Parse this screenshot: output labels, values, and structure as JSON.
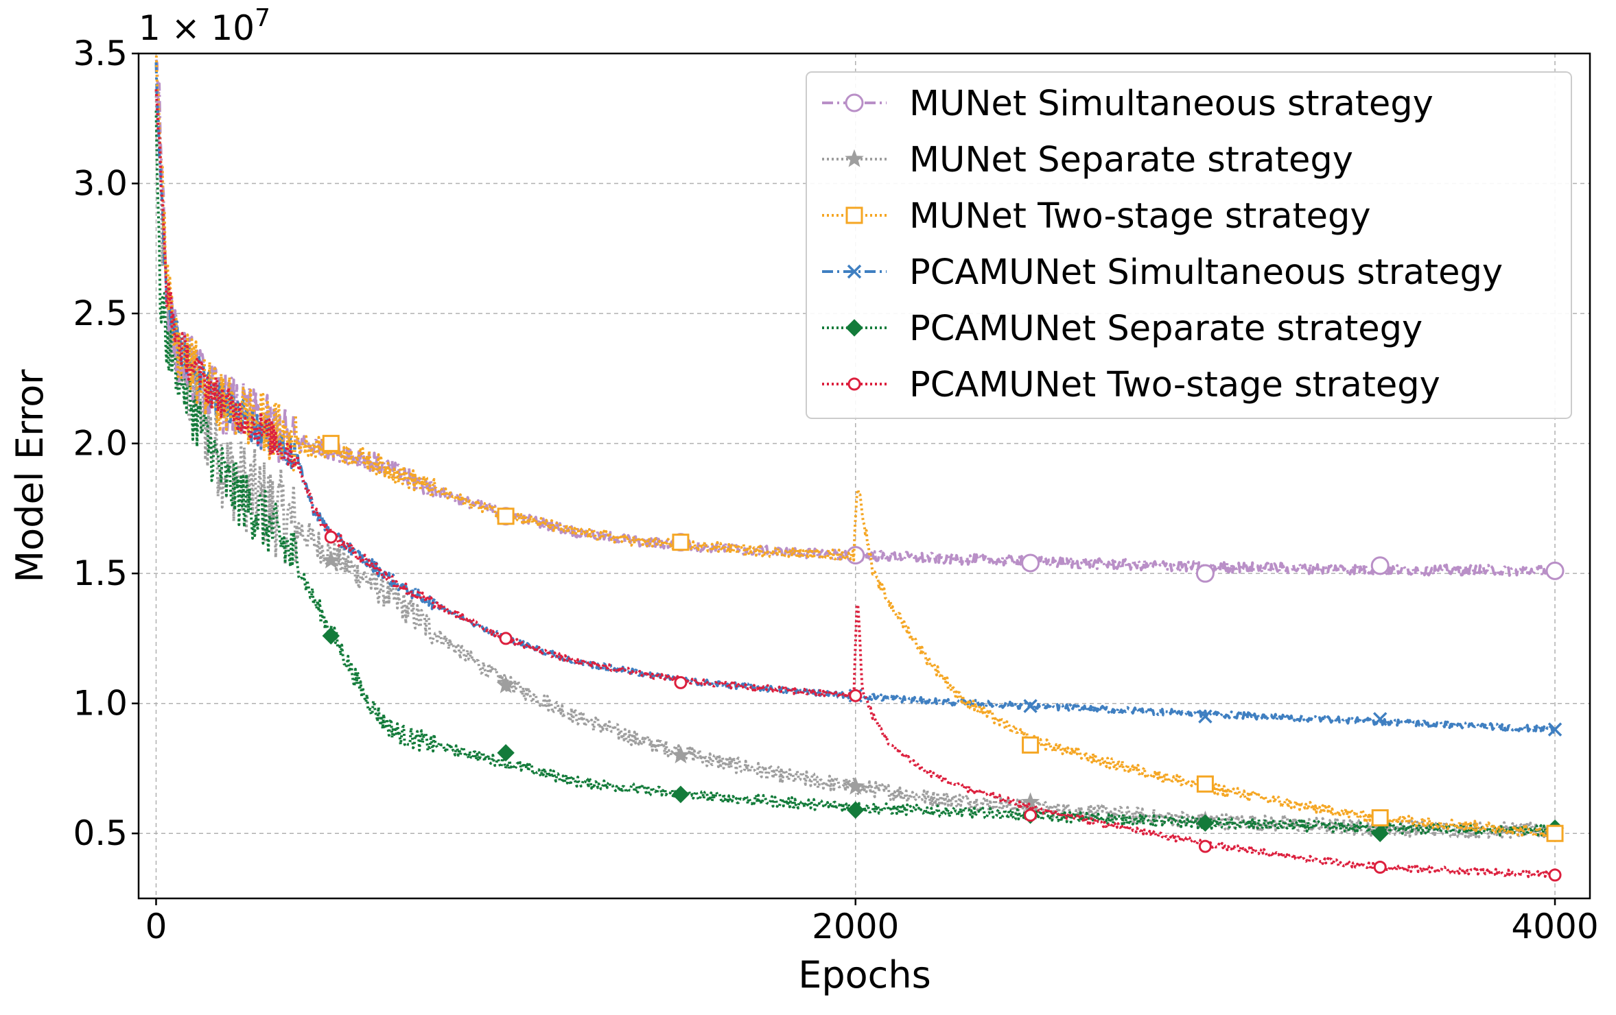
{
  "chart_data": {
    "type": "line",
    "title": "",
    "xlabel": "Epochs",
    "ylabel": "Model Error",
    "y_multiplier": {
      "base": "1 × 10",
      "exponent": "7"
    },
    "xlim": [
      -50,
      4100
    ],
    "ylim": [
      0.25,
      3.5
    ],
    "x_ticks": [
      0,
      2000,
      4000
    ],
    "x_tick_labels": [
      "0",
      "2000",
      "4000"
    ],
    "y_ticks": [
      0.5,
      1.0,
      1.5,
      2.0,
      2.5,
      3.0,
      3.5
    ],
    "y_tick_labels": [
      "0.5",
      "1.0",
      "1.5",
      "2.0",
      "2.5",
      "3.0",
      "3.5"
    ],
    "grid": true,
    "legend_position": "top-right",
    "series": [
      {
        "name": "MUNet Simultaneous strategy",
        "color": "#b98fc7",
        "linestyle": "dashdot",
        "marker": "circle-open",
        "noise": 0.02,
        "x": [
          0,
          10,
          30,
          60,
          100,
          150,
          200,
          300,
          400,
          500,
          600,
          700,
          800,
          900,
          1000,
          1200,
          1400,
          1600,
          1800,
          2000,
          2200,
          2500,
          3000,
          3500,
          4000
        ],
        "y": [
          3.5,
          3.3,
          2.6,
          2.35,
          2.3,
          2.2,
          2.15,
          2.08,
          2.0,
          1.98,
          1.94,
          1.88,
          1.82,
          1.77,
          1.73,
          1.66,
          1.62,
          1.6,
          1.58,
          1.57,
          1.56,
          1.545,
          1.525,
          1.515,
          1.51
        ],
        "markers_x": [
          500,
          1000,
          1500,
          2000,
          2500,
          3000,
          3500,
          4000
        ],
        "markers_y": [
          1.99,
          1.72,
          1.62,
          1.57,
          1.54,
          1.5,
          1.53,
          1.51
        ]
      },
      {
        "name": "MUNet Separate strategy",
        "color": "#9e9e9e",
        "linestyle": "dotted",
        "marker": "star",
        "noise": 0.03,
        "x": [
          0,
          10,
          30,
          60,
          100,
          150,
          200,
          300,
          400,
          500,
          600,
          700,
          800,
          900,
          1000,
          1200,
          1400,
          1600,
          1800,
          2000,
          2200,
          2500,
          3000,
          3500,
          4000
        ],
        "y": [
          3.3,
          3.0,
          2.5,
          2.35,
          2.2,
          2.05,
          1.9,
          1.78,
          1.68,
          1.57,
          1.48,
          1.38,
          1.27,
          1.17,
          1.08,
          0.95,
          0.85,
          0.78,
          0.72,
          0.68,
          0.64,
          0.6,
          0.55,
          0.52,
          0.51
        ],
        "markers_x": [
          500,
          1000,
          1500,
          2000,
          2500,
          3000,
          3500,
          4000
        ],
        "markers_y": [
          1.55,
          1.07,
          0.8,
          0.68,
          0.62,
          0.55,
          0.52,
          0.51
        ]
      },
      {
        "name": "MUNet Two-stage strategy",
        "color": "#f5a623",
        "linestyle": "dotted",
        "marker": "square-open",
        "noise": 0.02,
        "x": [
          0,
          10,
          30,
          60,
          100,
          150,
          200,
          300,
          400,
          500,
          600,
          700,
          800,
          900,
          1000,
          1200,
          1400,
          1600,
          1800,
          1995,
          2005,
          2050,
          2100,
          2200,
          2300,
          2500,
          2700,
          3000,
          3300,
          3500,
          4000
        ],
        "y": [
          3.5,
          3.3,
          2.6,
          2.35,
          2.3,
          2.2,
          2.15,
          2.08,
          2.0,
          1.98,
          1.94,
          1.88,
          1.82,
          1.77,
          1.73,
          1.66,
          1.62,
          1.6,
          1.58,
          1.57,
          1.85,
          1.5,
          1.38,
          1.18,
          1.02,
          0.86,
          0.78,
          0.68,
          0.6,
          0.56,
          0.5
        ],
        "markers_x": [
          500,
          1000,
          1500,
          2500,
          3000,
          3500,
          4000
        ],
        "markers_y": [
          2.0,
          1.72,
          1.62,
          0.84,
          0.69,
          0.56,
          0.5
        ]
      },
      {
        "name": "PCAMUNet Simultaneous strategy",
        "color": "#3f7fc1",
        "linestyle": "dashdot",
        "marker": "x",
        "noise": 0.012,
        "x": [
          0,
          10,
          30,
          60,
          100,
          150,
          200,
          300,
          400,
          450,
          500,
          600,
          700,
          800,
          1000,
          1200,
          1500,
          1800,
          2000,
          2200,
          2500,
          3000,
          3500,
          4000
        ],
        "y": [
          3.4,
          3.1,
          2.6,
          2.4,
          2.3,
          2.22,
          2.15,
          2.05,
          1.95,
          1.75,
          1.65,
          1.55,
          1.45,
          1.38,
          1.25,
          1.16,
          1.09,
          1.05,
          1.03,
          1.01,
          0.99,
          0.96,
          0.93,
          0.9
        ],
        "markers_x": [
          2000,
          2500,
          3000,
          3500,
          4000
        ],
        "markers_y": [
          1.03,
          0.99,
          0.95,
          0.94,
          0.9
        ]
      },
      {
        "name": "PCAMUNet Separate strategy",
        "color": "#137b3a",
        "linestyle": "dotted",
        "marker": "diamond",
        "noise": 0.02,
        "x": [
          0,
          10,
          30,
          60,
          100,
          150,
          200,
          300,
          400,
          450,
          500,
          550,
          600,
          650,
          700,
          800,
          1000,
          1200,
          1500,
          1800,
          2000,
          2500,
          3000,
          3500,
          4000
        ],
        "y": [
          3.3,
          2.6,
          2.4,
          2.3,
          2.15,
          2.0,
          1.85,
          1.72,
          1.55,
          1.4,
          1.28,
          1.15,
          1.02,
          0.93,
          0.88,
          0.84,
          0.77,
          0.7,
          0.65,
          0.62,
          0.6,
          0.57,
          0.54,
          0.52,
          0.51
        ],
        "markers_x": [
          500,
          1000,
          1500,
          2000,
          2500,
          3000,
          3500,
          4000
        ],
        "markers_y": [
          1.26,
          0.81,
          0.65,
          0.59,
          0.57,
          0.54,
          0.5,
          0.52
        ]
      },
      {
        "name": "PCAMUNet Two-stage strategy",
        "color": "#dc1f3d",
        "linestyle": "dotted",
        "marker": "circle-small",
        "noise": 0.012,
        "x": [
          0,
          10,
          30,
          60,
          100,
          150,
          200,
          300,
          400,
          450,
          500,
          600,
          700,
          800,
          1000,
          1200,
          1500,
          1800,
          1995,
          2005,
          2020,
          2050,
          2100,
          2200,
          2300,
          2500,
          2700,
          3000,
          3300,
          3500,
          4000
        ],
        "y": [
          3.4,
          3.1,
          2.6,
          2.4,
          2.3,
          2.22,
          2.15,
          2.05,
          1.95,
          1.75,
          1.65,
          1.55,
          1.45,
          1.38,
          1.25,
          1.16,
          1.09,
          1.05,
          1.03,
          1.42,
          1.05,
          0.95,
          0.84,
          0.74,
          0.68,
          0.6,
          0.54,
          0.46,
          0.4,
          0.37,
          0.34
        ],
        "markers_x": [
          500,
          1000,
          1500,
          2000,
          2500,
          3000,
          3500,
          4000
        ],
        "markers_y": [
          1.64,
          1.25,
          1.08,
          1.03,
          0.57,
          0.45,
          0.37,
          0.34
        ]
      }
    ]
  }
}
